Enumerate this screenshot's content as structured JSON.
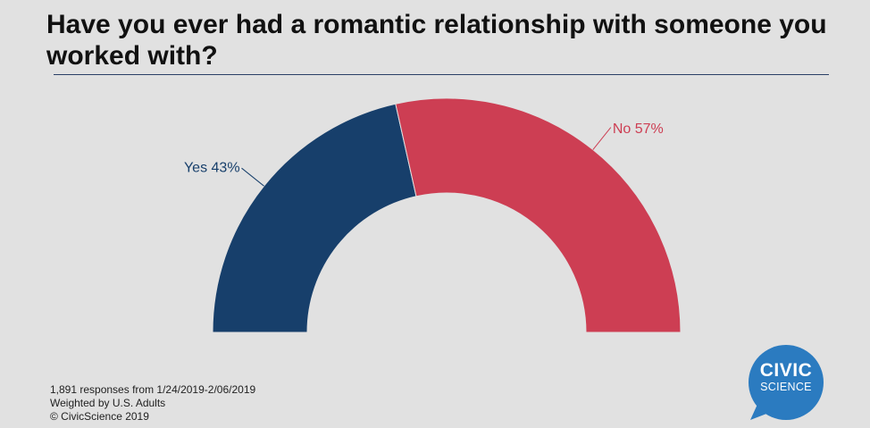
{
  "title": "Have you ever had a romantic relationship with someone you worked with?",
  "footer": {
    "line1": "1,891 responses from 1/24/2019-2/06/2019",
    "line2": "Weighted by U.S. Adults",
    "line3": "© CivicScience 2019"
  },
  "logo": {
    "line1": "CIVIC",
    "line2": "SCIENCE",
    "color": "#2b7bc0"
  },
  "chart_data": {
    "type": "pie",
    "variant": "half-donut",
    "title": "Have you ever had a romantic relationship with someone you worked with?",
    "categories": [
      "Yes",
      "No"
    ],
    "values": [
      43,
      57
    ],
    "unit": "%",
    "labels": [
      "Yes 43%",
      "No 57%"
    ],
    "colors": [
      "#173f6b",
      "#cd3e53"
    ],
    "legend": "none",
    "grid": false
  }
}
